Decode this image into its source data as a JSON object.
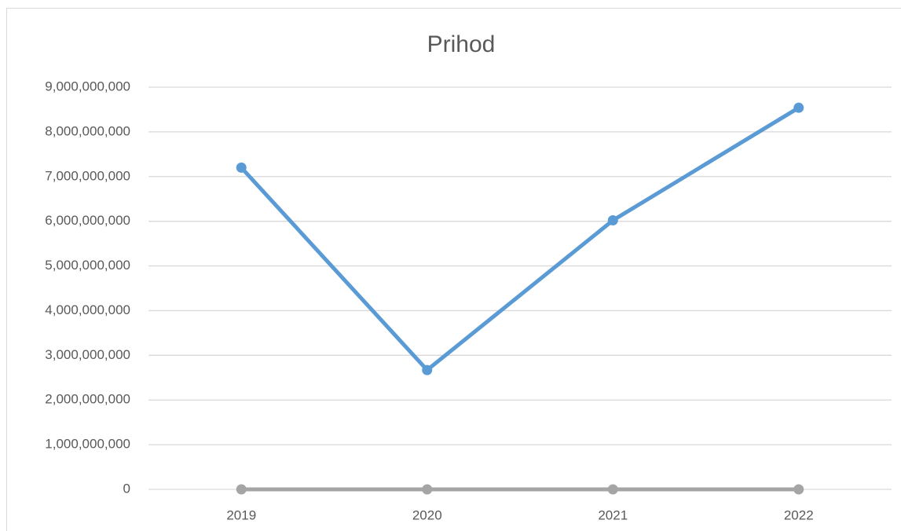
{
  "chart_data": {
    "type": "line",
    "title": "Prihod",
    "categories": [
      "2019",
      "2020",
      "2021",
      "2022"
    ],
    "series": [
      {
        "color": "#5b9bd5",
        "values": [
          7200000000,
          2670000000,
          6020000000,
          8540000000
        ]
      },
      {
        "color": "#a5a5a5",
        "values": [
          0,
          0,
          0,
          0
        ]
      }
    ],
    "ylim": [
      0,
      9000000000
    ],
    "yticks": [
      0,
      {
        "value": 1000000000,
        "label": "1,000,000,000"
      },
      {
        "value": 2000000000,
        "label": "2,000,000,000"
      },
      {
        "value": 3000000000,
        "label": "3,000,000,000"
      },
      {
        "value": 4000000000,
        "label": "4,000,000,000"
      },
      {
        "value": 5000000000,
        "label": "5,000,000,000"
      },
      {
        "value": 6000000000,
        "label": "6,000,000,000"
      },
      {
        "value": 7000000000,
        "label": "7,000,000,000"
      },
      {
        "value": 8000000000,
        "label": "8,000,000,000"
      },
      {
        "value": 9000000000,
        "label": "9,000,000,000"
      }
    ],
    "grid": true
  }
}
